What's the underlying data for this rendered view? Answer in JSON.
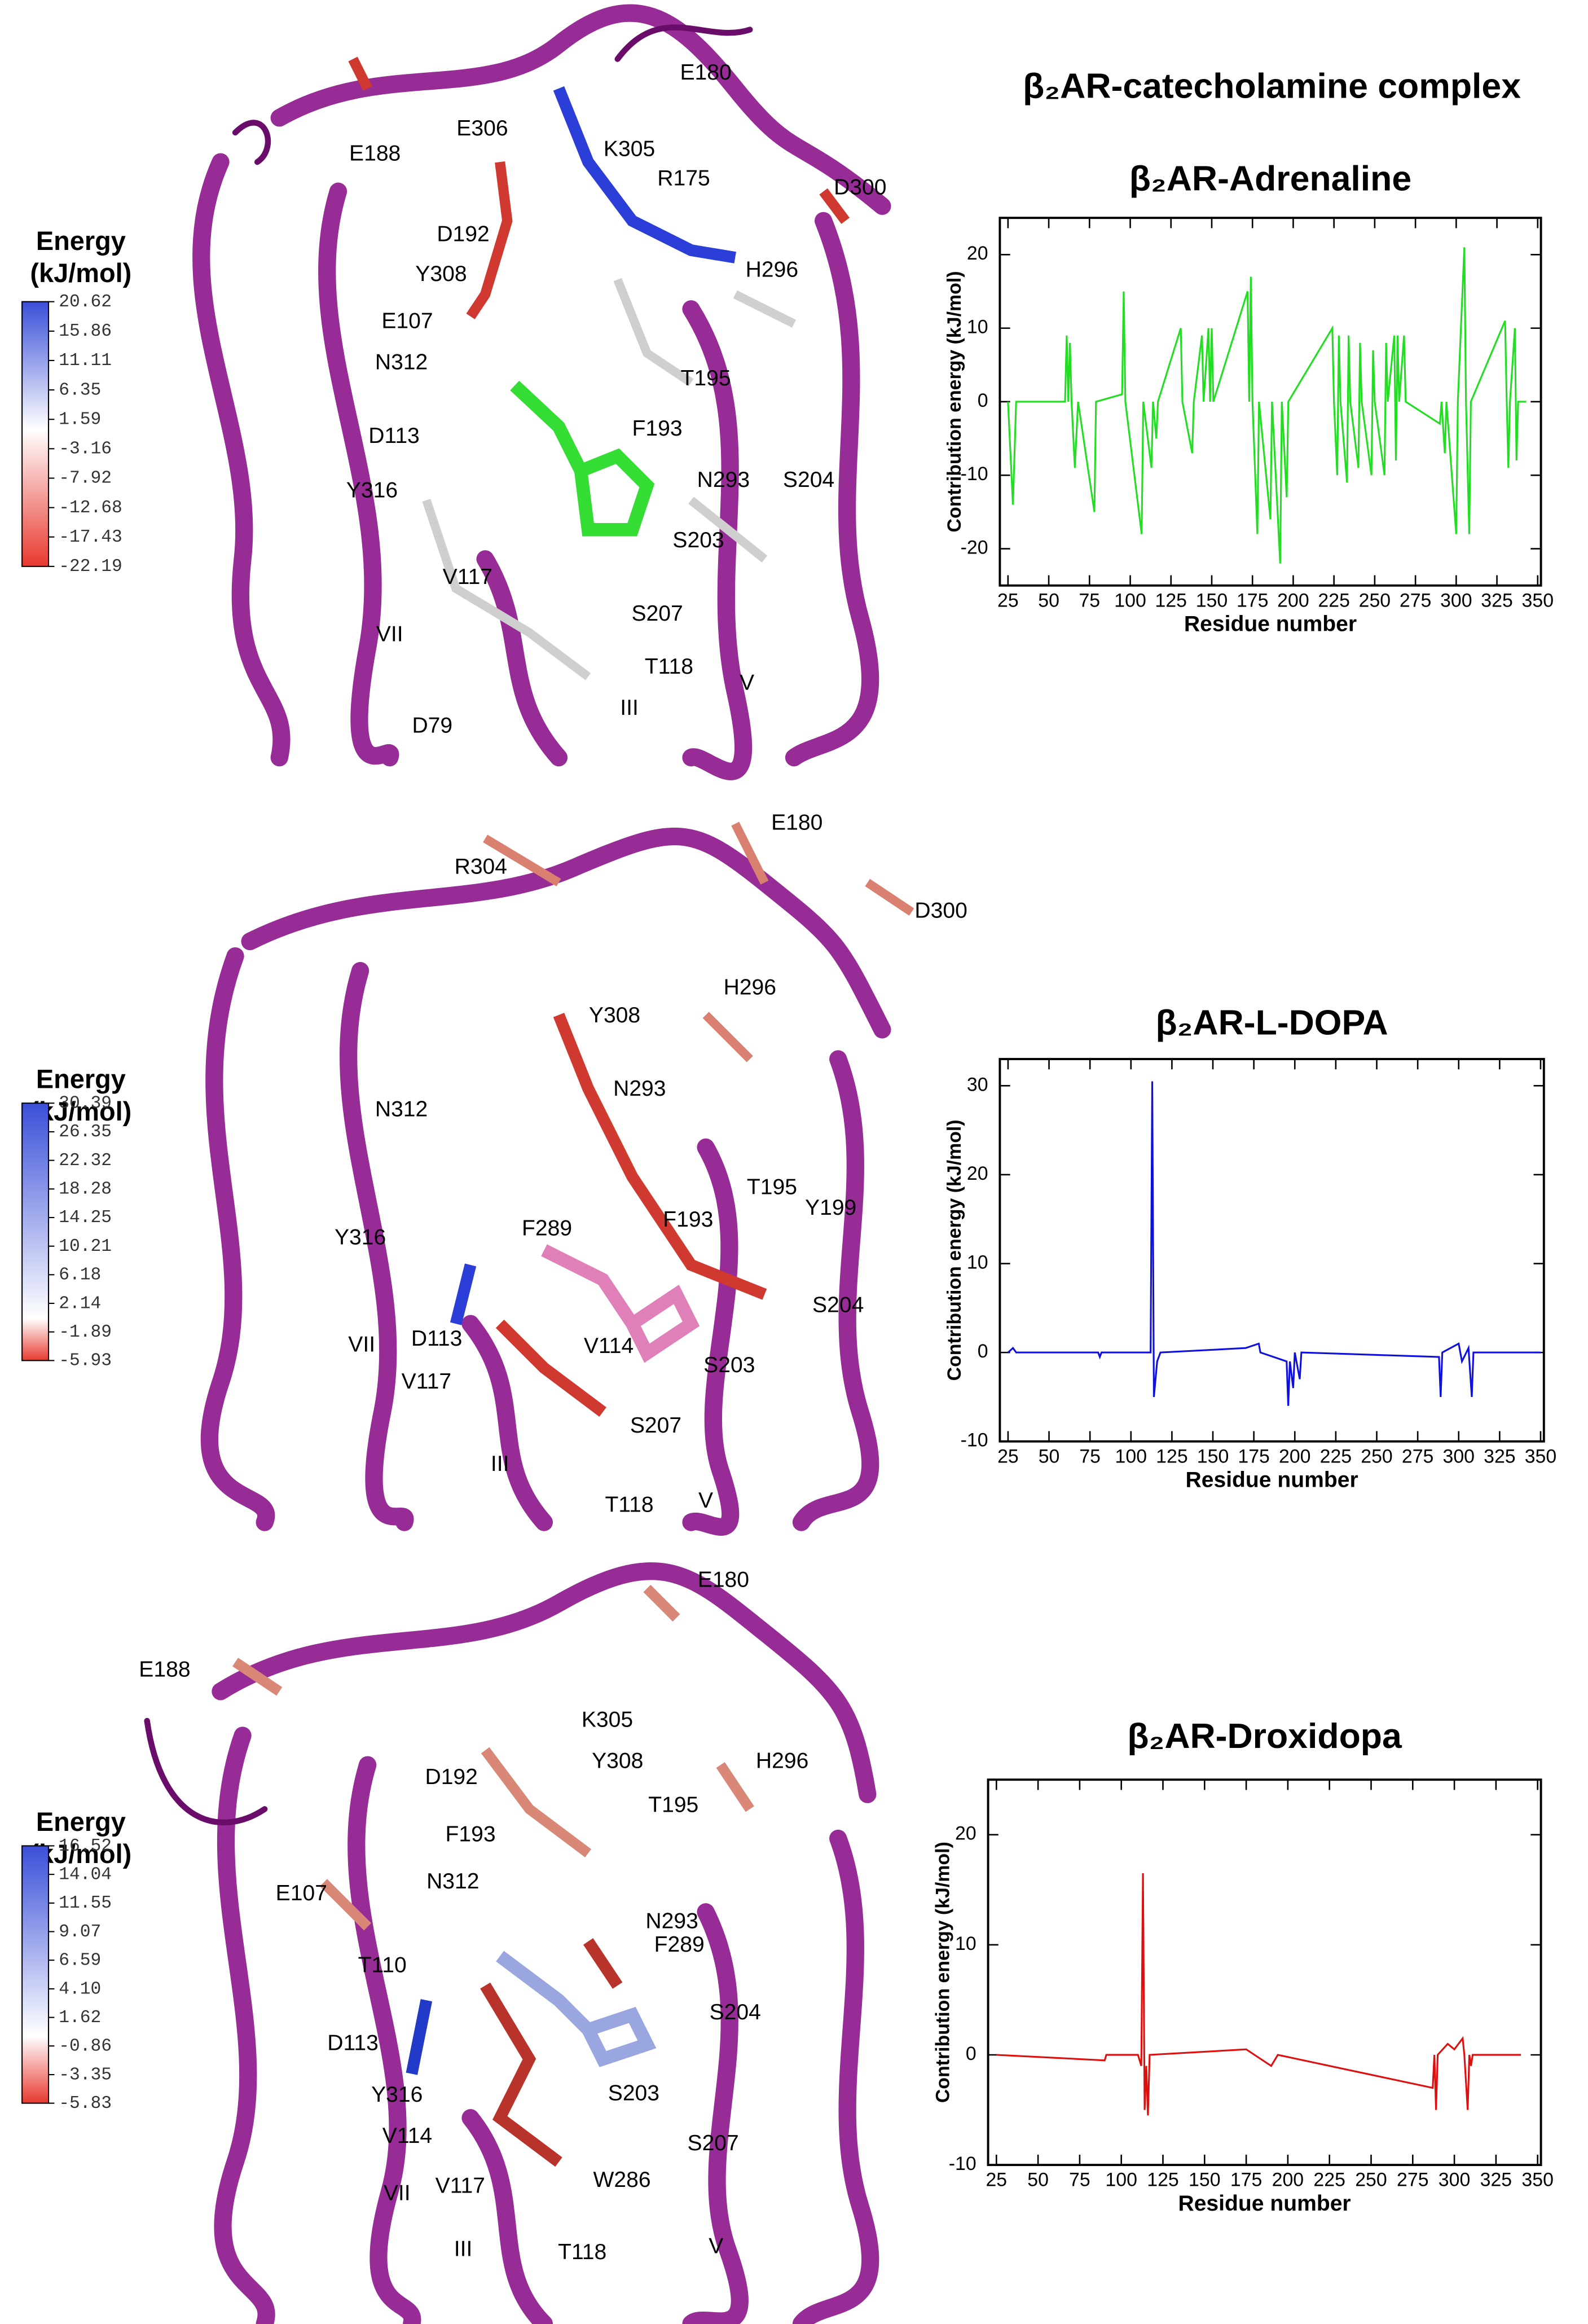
{
  "title": "β₂AR-catecholamine complex",
  "colorbars": [
    {
      "title": [
        "Energy",
        "(kJ/mol)"
      ],
      "high_color": "#3a4fd8",
      "mid_color": "#ffffff",
      "low_color": "#e8392f",
      "ticks": [
        20.62,
        15.86,
        11.11,
        6.35,
        1.59,
        -3.16,
        -7.92,
        -12.68,
        -17.43,
        -22.19
      ]
    },
    {
      "title": [
        "Energy",
        "(kJ/mol)"
      ],
      "high_color": "#3a4fd8",
      "mid_color": "#ffffff",
      "low_color": "#e8392f",
      "ticks": [
        30.39,
        26.35,
        22.32,
        18.28,
        14.25,
        10.21,
        6.18,
        2.14,
        -1.89,
        -5.93
      ]
    },
    {
      "title": [
        "Energy",
        "(kJ/mol)"
      ],
      "high_color": "#3a4fd8",
      "mid_color": "#ffffff",
      "low_color": "#e8392f",
      "ticks": [
        16.52,
        14.04,
        11.55,
        9.07,
        6.59,
        {
          "value": 4.1,
          "label": "4.10"
        },
        1.62,
        -0.86,
        -3.35,
        -5.83
      ]
    }
  ],
  "structures": [
    {
      "labels": [
        "E180",
        "E188",
        "E306",
        "K305",
        "R175",
        "D300",
        "D192",
        "H296",
        "Y308",
        "E107",
        "N312",
        "T195",
        "D113",
        "F193",
        "N293",
        "S204",
        "Y316",
        "S203",
        "V117",
        "S207",
        "VII",
        "T118",
        "III",
        "V",
        "D79"
      ]
    },
    {
      "labels": [
        "R304",
        "E180",
        "D300",
        "H296",
        "Y308",
        "N312",
        "N293",
        "T195",
        "Y199",
        "F289",
        "F193",
        "Y316",
        "S204",
        "VII",
        "D113",
        "V114",
        "S203",
        "V117",
        "S207",
        "III",
        "T118",
        "V"
      ]
    },
    {
      "labels": [
        "E180",
        "E188",
        "K305",
        "D192",
        "Y308",
        "H296",
        "T195",
        "F193",
        "E107",
        "N312",
        "N293",
        "F289",
        "T110",
        "S204",
        "D113",
        "S203",
        "Y316",
        "V114",
        "S207",
        "VII",
        "V117",
        "W286",
        "III",
        "T118",
        "V"
      ]
    }
  ],
  "chart_data": [
    {
      "type": "line",
      "title": "β₂AR-Adrenaline",
      "x_label": "Residue number",
      "y_label": "Contribution energy (kJ/mol)",
      "color": "#22dd22",
      "xlim": [
        20,
        352
      ],
      "xticks": [
        25,
        50,
        75,
        100,
        125,
        150,
        175,
        200,
        225,
        250,
        275,
        300,
        325,
        350
      ],
      "ylim": [
        -25,
        25
      ],
      "yticks": [
        -20,
        -10,
        0,
        10,
        20
      ],
      "x": [
        25,
        28,
        30,
        60,
        61,
        62,
        63,
        64,
        66,
        68,
        78,
        79,
        95,
        96,
        97,
        107,
        108,
        113,
        114,
        116,
        117,
        131,
        132,
        138,
        139,
        144,
        145,
        148,
        149,
        150,
        151,
        172,
        173,
        174,
        175,
        178,
        179,
        186,
        187,
        192,
        193,
        196,
        197,
        224,
        225,
        227,
        228,
        229,
        233,
        234,
        235,
        240,
        241,
        242,
        248,
        249,
        250,
        256,
        257,
        258,
        262,
        263,
        264,
        265,
        268,
        269,
        290,
        291,
        293,
        294,
        300,
        301,
        305,
        306,
        308,
        309,
        330,
        331,
        332,
        333,
        336,
        337,
        338,
        343
      ],
      "values": [
        0,
        -14,
        0,
        0,
        9,
        0,
        8,
        0,
        -9,
        0,
        -15,
        0,
        1,
        15,
        0,
        -18,
        0,
        -9,
        0,
        -5,
        0,
        10,
        0,
        -7,
        0,
        9,
        0,
        10,
        0,
        10,
        0,
        15,
        0,
        17,
        0,
        -18,
        0,
        -16,
        0,
        -22,
        0,
        -13,
        0,
        10,
        0,
        -10,
        9,
        0,
        -11,
        9,
        0,
        -9,
        8,
        0,
        -10,
        7,
        0,
        -10,
        8,
        0,
        9,
        -8,
        9,
        0,
        9,
        0,
        -3,
        0,
        -7,
        0,
        -18,
        0,
        21,
        0,
        -18,
        0,
        11,
        0,
        -9,
        0,
        10,
        -8,
        0,
        0
      ]
    },
    {
      "type": "line",
      "title": "β₂AR-L-DOPA",
      "x_label": "Residue number",
      "y_label": "Contribution energy (kJ/mol)",
      "color": "#1010dd",
      "xlim": [
        20,
        352
      ],
      "xticks": [
        25,
        50,
        75,
        100,
        125,
        150,
        175,
        200,
        225,
        250,
        275,
        300,
        325,
        350
      ],
      "ylim": [
        -10,
        33
      ],
      "yticks": [
        -10,
        0,
        10,
        20,
        30
      ],
      "x": [
        25,
        28,
        30,
        80,
        81,
        82,
        112,
        113,
        114,
        116,
        118,
        170,
        178,
        179,
        195,
        196,
        197,
        199,
        200,
        203,
        204,
        288,
        289,
        290,
        300,
        302,
        306,
        308,
        309,
        350
      ],
      "values": [
        0,
        0.5,
        0,
        0,
        -0.5,
        0,
        0,
        30.5,
        -5,
        -1,
        0,
        0.5,
        1,
        0,
        -1,
        -6,
        -1,
        -4,
        0,
        -3,
        0,
        -0.5,
        -5,
        0,
        1,
        -1,
        0.5,
        -5,
        0,
        0
      ]
    },
    {
      "type": "line",
      "title": "β₂AR-Droxidopa",
      "x_label": "Residue number",
      "y_label": "Contribution energy (kJ/mol)",
      "color": "#dd1010",
      "xlim": [
        20,
        352
      ],
      "xticks": [
        25,
        50,
        75,
        100,
        125,
        150,
        175,
        200,
        225,
        250,
        275,
        300,
        325,
        350
      ],
      "ylim": [
        -10,
        25
      ],
      "yticks": [
        -10,
        0,
        10,
        20
      ],
      "x": [
        25,
        90,
        91,
        110,
        112,
        113,
        114,
        115,
        116,
        117,
        175,
        180,
        190,
        194,
        287,
        288,
        289,
        290,
        296,
        300,
        305,
        306,
        308,
        309,
        310,
        311,
        340
      ],
      "values": [
        0,
        -0.5,
        0,
        0,
        -1,
        16.5,
        -5,
        -1,
        -5.5,
        0,
        0.5,
        0,
        -1,
        0,
        -3,
        0,
        -5,
        0,
        1,
        0.5,
        1.5,
        0,
        -5,
        0,
        -1,
        0,
        0
      ]
    }
  ]
}
